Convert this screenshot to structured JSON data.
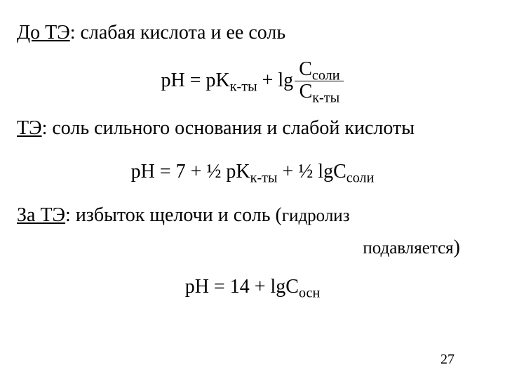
{
  "font": {
    "family": "Times New Roman",
    "base_size_pt": 28,
    "color": "#000000"
  },
  "background_color": "#ffffff",
  "section1": {
    "label_prefix": "До ТЭ",
    "label_rest": ": слабая кислота и ее соль",
    "eq": {
      "lhs": "pH = pK",
      "lhs_sub": "к-ты",
      "plus_lg": " + lg",
      "num_base": "С",
      "num_sub": "соли",
      "den_base": "С",
      "den_sub": "к-ты"
    }
  },
  "section2": {
    "label_prefix": "ТЭ",
    "label_rest": ": соль сильного основания и слабой кислоты",
    "eq": {
      "t1": "pH = 7  + ½ pK",
      "s1": "к-ты",
      "t2": " +  ½ lgС",
      "s2": "соли"
    }
  },
  "section3": {
    "label_prefix": "За ТЭ",
    "label_rest": ": избыток щелочи и соль (",
    "hydro1": "гидролиз",
    "hydro2": "подавляется",
    "close": ")",
    "eq": {
      "t1": "pH = 14 + lgС",
      "s1": "осн"
    }
  },
  "page_number": "27"
}
